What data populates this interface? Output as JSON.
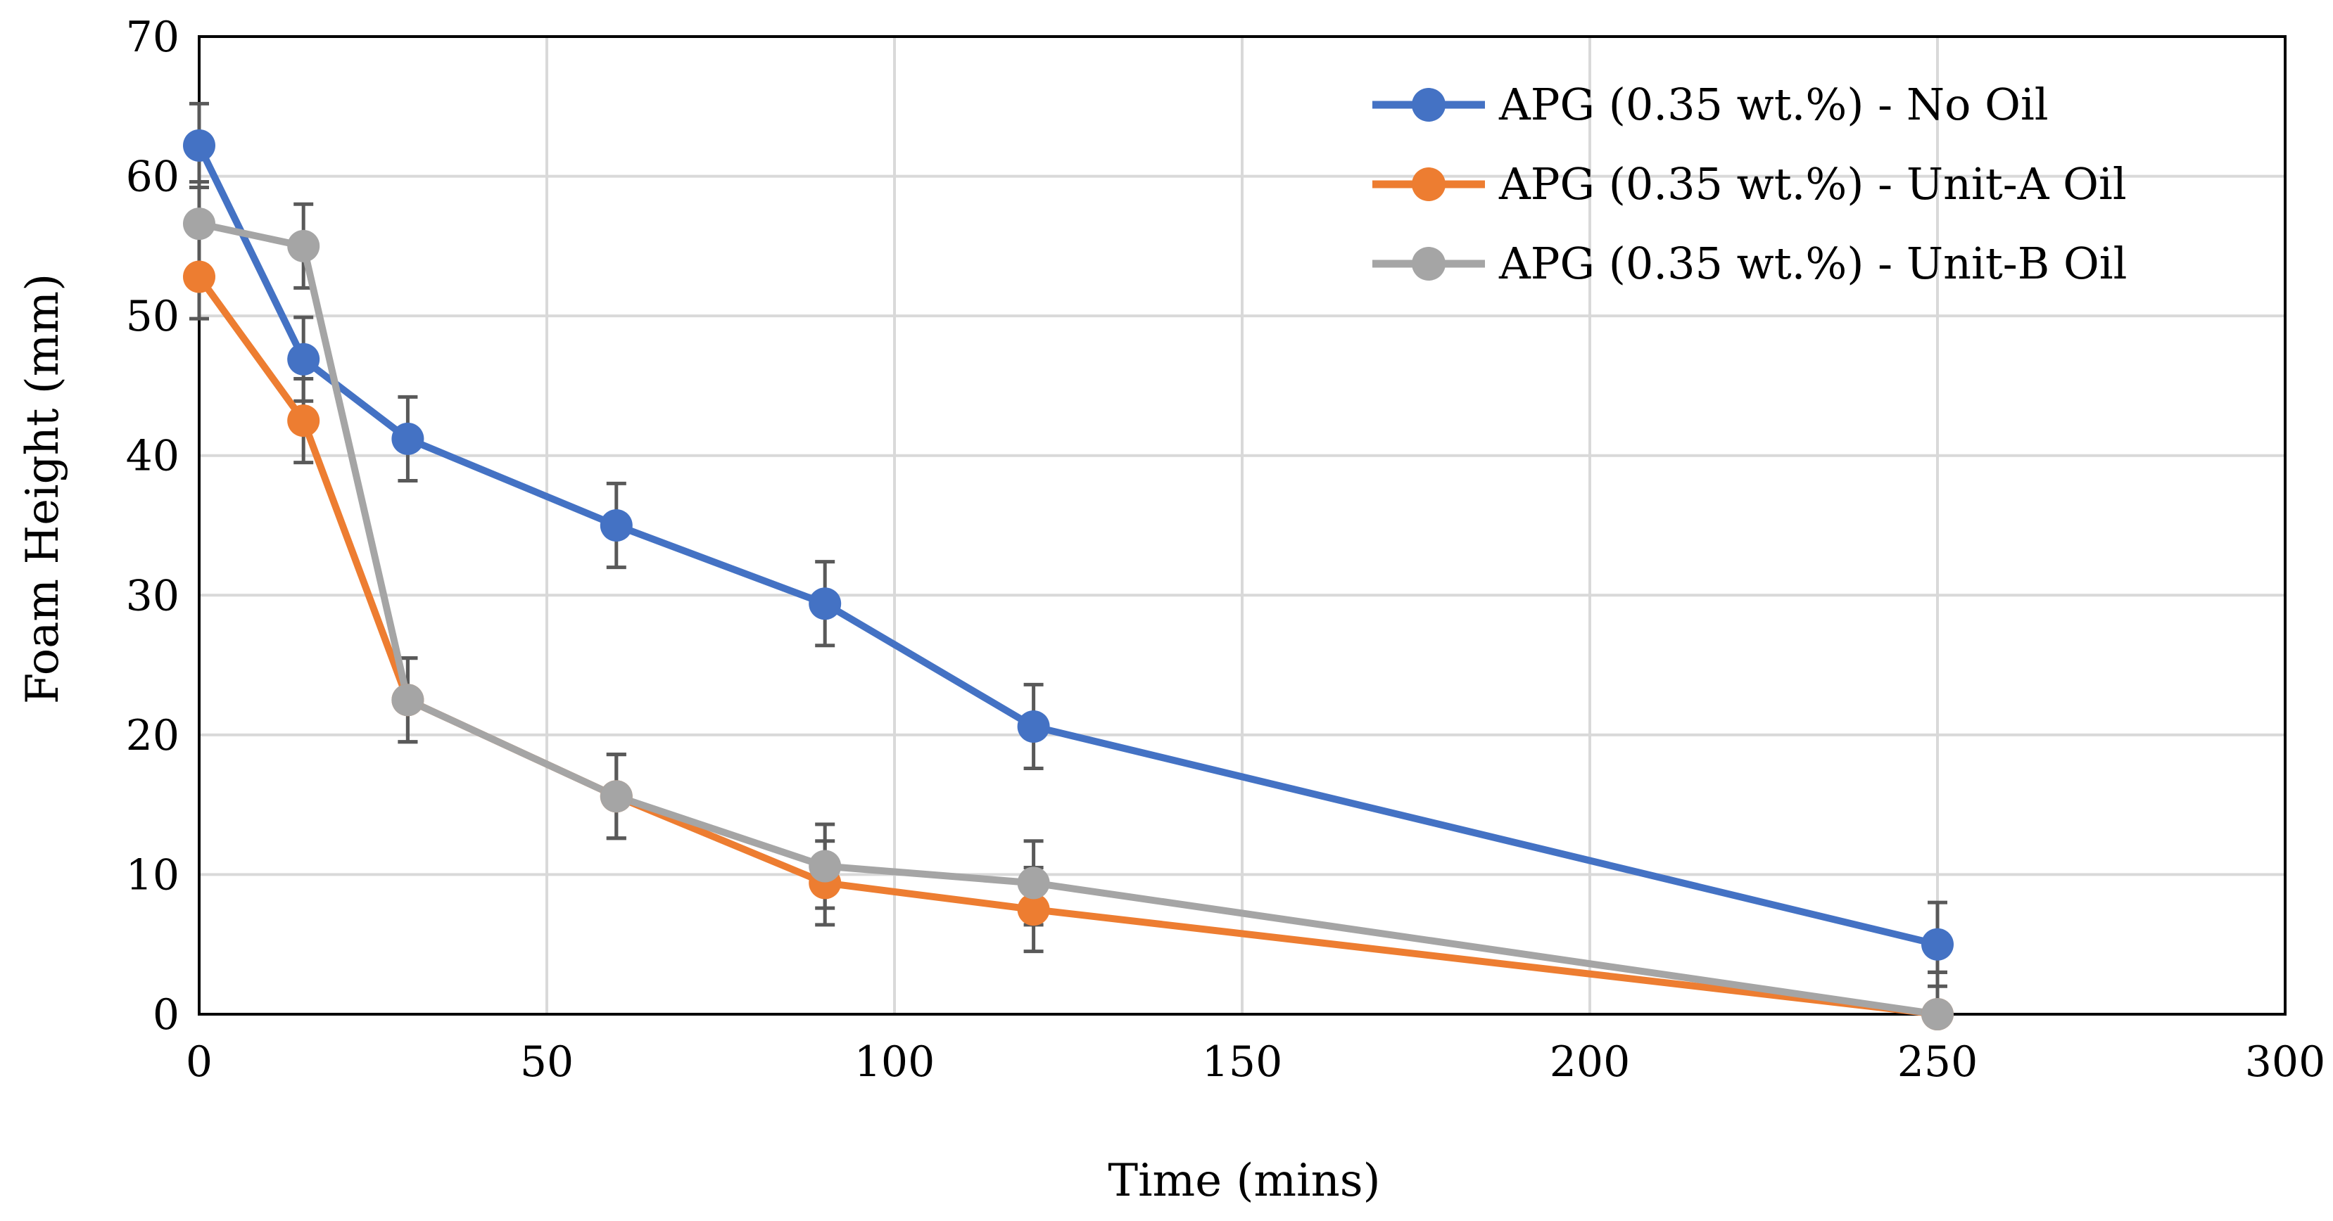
{
  "chart_data": {
    "type": "line",
    "title": "",
    "xlabel": "Time (mins)",
    "ylabel": "Foam Height (mm)",
    "xlim": [
      0,
      300
    ],
    "ylim": [
      0,
      70
    ],
    "x_ticks": [
      "0",
      "50",
      "100",
      "150",
      "200",
      "250",
      "300"
    ],
    "y_ticks": [
      "0",
      "10",
      "20",
      "30",
      "40",
      "50",
      "60",
      "70"
    ],
    "grid": true,
    "legend_position": "top-right",
    "error_bar": 3,
    "series": [
      {
        "name": "APG (0.35 wt.%) - No Oil",
        "color": "#4472C4",
        "x": [
          0,
          15,
          30,
          60,
          90,
          120,
          250
        ],
        "values": [
          62.2,
          46.9,
          41.2,
          35.0,
          29.4,
          20.6,
          5.0
        ]
      },
      {
        "name": "APG (0.35 wt.%) - Unit-A Oil",
        "color": "#ED7D31",
        "x": [
          0,
          15,
          30,
          60,
          90,
          120,
          250
        ],
        "values": [
          52.8,
          42.5,
          22.5,
          15.6,
          9.4,
          7.5,
          0.0
        ]
      },
      {
        "name": "APG (0.35 wt.%) - Unit-B Oil",
        "color": "#A5A5A5",
        "x": [
          0,
          15,
          30,
          60,
          90,
          120,
          250
        ],
        "values": [
          56.6,
          55.0,
          22.5,
          15.6,
          10.6,
          9.4,
          0.0
        ]
      }
    ]
  },
  "colors": {
    "grid": "#D9D9D9",
    "axis": "#000000",
    "error_bar": "#595959"
  }
}
